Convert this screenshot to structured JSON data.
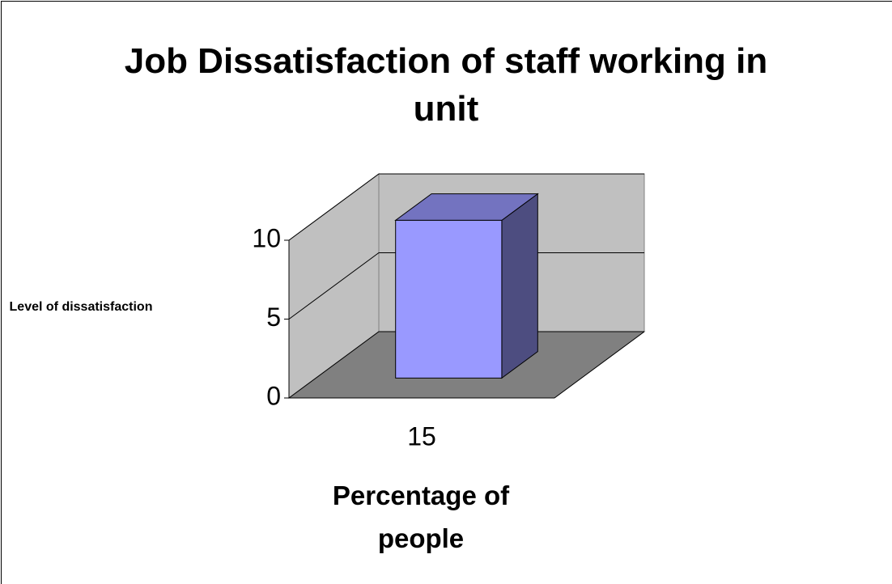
{
  "chart_data": {
    "type": "bar",
    "title": "Job Dissatisfaction of staff working in unit",
    "y_label": "Level of dissatisfaction",
    "x_label": "Percentage of people",
    "categories": [
      "15"
    ],
    "values": [
      10
    ],
    "color": "#9999ff",
    "ylim": [
      0,
      10
    ],
    "yticks": [
      0,
      5,
      10
    ],
    "grid": true
  }
}
